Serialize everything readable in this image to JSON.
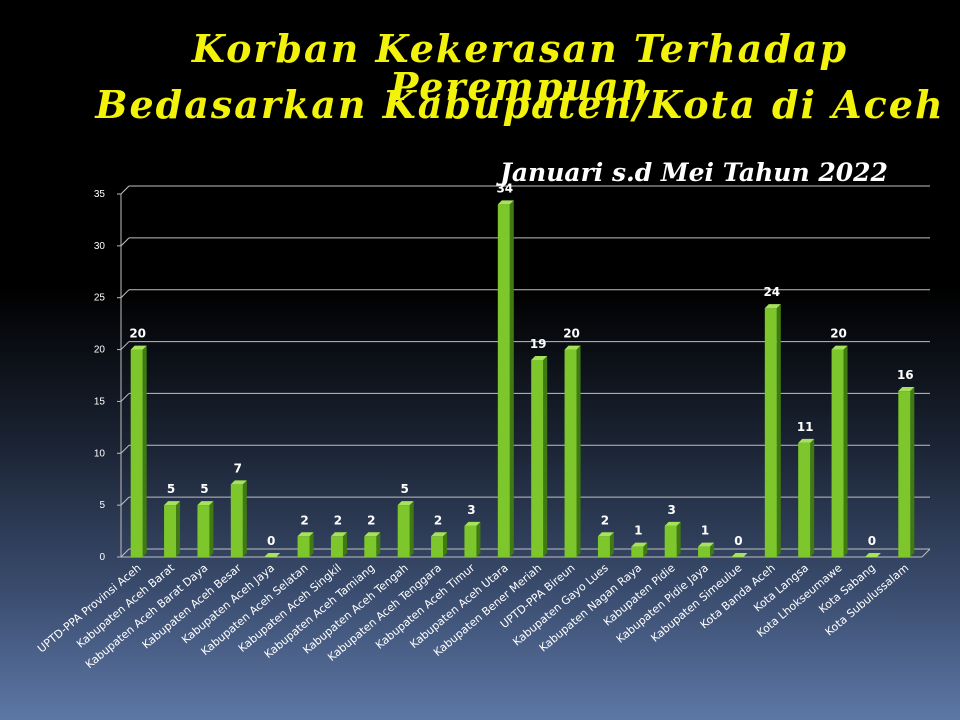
{
  "chart_data": {
    "type": "bar",
    "title_line1": "Korban Kekerasan Terhadap Perempuan",
    "title_line2": "Bedasarkan Kabupaten/Kota di Aceh",
    "subtitle": "Januari s.d Mei Tahun 2022",
    "categories": [
      "UPTD-PPA Provinsi Aceh",
      "Kabupaten Aceh Barat",
      "Kabupaten Aceh Barat Daya",
      "Kabupaten Aceh Besar",
      "Kabupaten Aceh Jaya",
      "Kabupaten Aceh Selatan",
      "Kabupaten Aceh Singkil",
      "Kabupaten Aceh Tamiang",
      "Kabupaten Aceh Tengah",
      "Kabupaten Aceh Tenggara",
      "Kabupaten Aceh Timur",
      "Kabupaten Aceh Utara",
      "Kabupaten Bener Meriah",
      "UPTD-PPA Bireun",
      "Kabupaten Gayo Lues",
      "Kabupaten Nagan Raya",
      "Kabupaten Pidie",
      "Kabupaten Pidie Jaya",
      "Kabupaten Simeulue",
      "Kota Banda Aceh",
      "Kota Langsa",
      "Kota Lhokseumawe",
      "Kota Sabang",
      "Kota Subulussalam"
    ],
    "values": [
      20,
      5,
      5,
      7,
      0,
      2,
      2,
      2,
      5,
      2,
      3,
      34,
      19,
      20,
      2,
      1,
      3,
      1,
      0,
      24,
      11,
      20,
      0,
      16
    ],
    "ylim": [
      0,
      35
    ],
    "yticks": [
      0,
      5,
      10,
      15,
      20,
      25,
      30,
      35
    ],
    "grid": true,
    "bar_color": "#7dc62b",
    "bar_dark": "#3f7a12",
    "bar_light": "#a6e25a"
  }
}
